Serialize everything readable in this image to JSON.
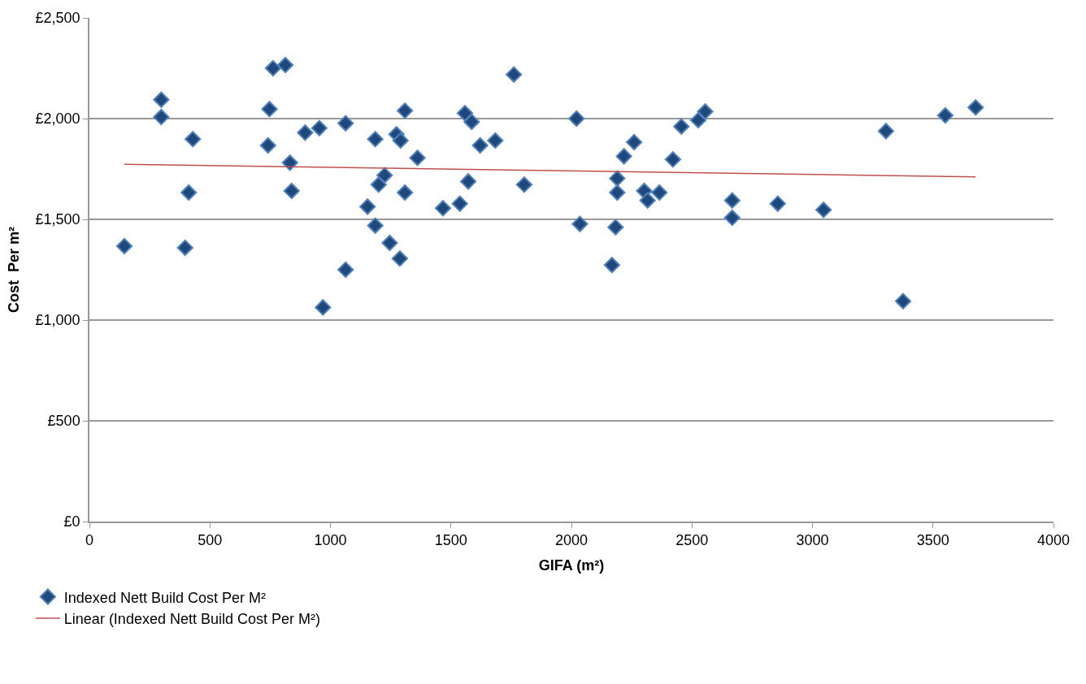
{
  "chart_data": {
    "type": "scatter",
    "xlabel": "GIFA (m²)",
    "ylabel": "Cost  Per m²",
    "xlim": [
      0,
      4000
    ],
    "xticks": [
      0,
      500,
      1000,
      1500,
      2000,
      2500,
      3000,
      3500,
      4000
    ],
    "ylim": [
      0,
      2500
    ],
    "yticks": [
      {
        "value": 0,
        "label": "£0"
      },
      {
        "value": 500,
        "label": "£500"
      },
      {
        "value": 1000,
        "label": "£1,000"
      },
      {
        "value": 1500,
        "label": "£1,500"
      },
      {
        "value": 2000,
        "label": "£2,000"
      },
      {
        "value": 2500,
        "label": "£2,500"
      }
    ],
    "grid": "y",
    "legend": "bottom left",
    "marker": "diamond",
    "series": [
      {
        "name": "Indexed Nett Build Cost Per M²",
        "color": "#1f497d",
        "x": [
          145,
          298,
          298,
          429,
          412,
          397,
          762,
          813,
          747,
          741,
          832,
          839,
          895,
          954,
          1063,
          969,
          1063,
          1186,
          1274,
          1291,
          1309,
          1225,
          1200,
          1309,
          1154,
          1186,
          1246,
          1288,
          1361,
          1761,
          1558,
          1586,
          1621,
          1684,
          1572,
          1467,
          1537,
          1804,
          2021,
          2035,
          2168,
          2183,
          2190,
          2190,
          2218,
          2260,
          2302,
          2316,
          2365,
          2421,
          2456,
          2526,
          2555,
          2667,
          2667,
          2856,
          3046,
          3305,
          3376,
          3551,
          3677
        ],
        "values": [
          1367,
          2094,
          2008,
          1898,
          1633,
          1359,
          2250,
          2266,
          2047,
          1867,
          1781,
          1641,
          1930,
          1953,
          1977,
          1063,
          1250,
          1898,
          1922,
          1891,
          2039,
          1719,
          1672,
          1633,
          1563,
          1469,
          1383,
          1305,
          1805,
          2219,
          2027,
          1984,
          1867,
          1891,
          1688,
          1555,
          1578,
          1672,
          2000,
          1477,
          1273,
          1461,
          1703,
          1633,
          1813,
          1883,
          1641,
          1594,
          1633,
          1797,
          1961,
          1992,
          2035,
          1594,
          1508,
          1578,
          1547,
          1938,
          1094,
          2016,
          2055
        ]
      },
      {
        "name": "Linear (Indexed Nett Build Cost Per M²)",
        "color": "#c0504d",
        "type": "line",
        "line_style": "solid",
        "marker": "none",
        "x": [
          145,
          3677
        ],
        "values": [
          1773,
          1711
        ]
      }
    ]
  }
}
